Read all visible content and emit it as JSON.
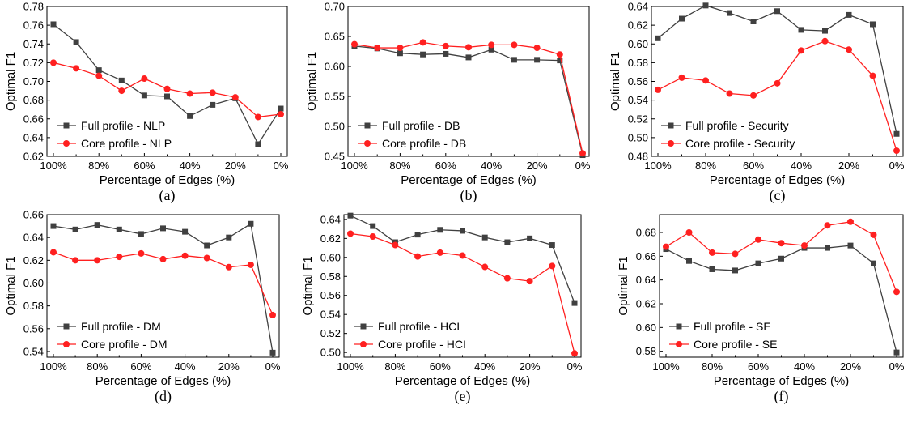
{
  "colors": {
    "full": "#404040",
    "core": "#ff2020",
    "axis": "#000000"
  },
  "chart_data": [
    {
      "type": "line",
      "caption": "(a)",
      "xlabel": "Percentage of Edges (%)",
      "ylabel": "Optimal F1",
      "categories": [
        "100%",
        "90%",
        "80%",
        "70%",
        "60%",
        "50%",
        "40%",
        "30%",
        "20%",
        "10%",
        "0%"
      ],
      "xtick_labels": [
        "100%",
        "80%",
        "60%",
        "40%",
        "20%",
        "0%"
      ],
      "ylim": [
        0.62,
        0.78
      ],
      "yticks": [
        "0.62",
        "0.64",
        "0.66",
        "0.68",
        "0.70",
        "0.72",
        "0.74",
        "0.76",
        "0.78"
      ],
      "legend_position": "bottom-left",
      "series": [
        {
          "name": "Full profile - NLP",
          "values": [
            0.761,
            0.742,
            0.712,
            0.701,
            0.685,
            0.684,
            0.663,
            0.675,
            0.682,
            0.633,
            0.671
          ]
        },
        {
          "name": "Core profile - NLP",
          "values": [
            0.72,
            0.714,
            0.706,
            0.69,
            0.703,
            0.692,
            0.687,
            0.688,
            0.683,
            0.662,
            0.665
          ]
        }
      ]
    },
    {
      "type": "line",
      "caption": "(b)",
      "xlabel": "Percentage of Edges (%)",
      "ylabel": "Optimal F1",
      "categories": [
        "100%",
        "90%",
        "80%",
        "70%",
        "60%",
        "50%",
        "40%",
        "30%",
        "20%",
        "10%",
        "0%"
      ],
      "xtick_labels": [
        "100%",
        "80%",
        "60%",
        "40%",
        "20%",
        "0%"
      ],
      "ylim": [
        0.45,
        0.7
      ],
      "yticks": [
        "0.45",
        "0.50",
        "0.55",
        "0.60",
        "0.65",
        "0.70"
      ],
      "legend_position": "bottom-left",
      "series": [
        {
          "name": "Full profile - DB",
          "values": [
            0.634,
            0.63,
            0.622,
            0.62,
            0.621,
            0.615,
            0.628,
            0.611,
            0.611,
            0.61,
            0.452
          ]
        },
        {
          "name": "Core profile - DB",
          "values": [
            0.637,
            0.631,
            0.631,
            0.64,
            0.634,
            0.632,
            0.636,
            0.636,
            0.631,
            0.62,
            0.455
          ]
        }
      ]
    },
    {
      "type": "line",
      "caption": "(c)",
      "xlabel": "Percentage of Edges (%)",
      "ylabel": "Optimal F1",
      "categories": [
        "100%",
        "90%",
        "80%",
        "70%",
        "60%",
        "50%",
        "40%",
        "30%",
        "20%",
        "10%",
        "0%"
      ],
      "xtick_labels": [
        "100%",
        "80%",
        "60%",
        "40%",
        "20%",
        "0%"
      ],
      "ylim": [
        0.48,
        0.64
      ],
      "yticks": [
        "0.48",
        "0.50",
        "0.52",
        "0.54",
        "0.56",
        "0.58",
        "0.60",
        "0.62",
        "0.64"
      ],
      "legend_position": "bottom-left",
      "series": [
        {
          "name": "Full profile - Security",
          "values": [
            0.606,
            0.627,
            0.641,
            0.633,
            0.624,
            0.635,
            0.615,
            0.614,
            0.631,
            0.621,
            0.504
          ]
        },
        {
          "name": "Core profile - Security",
          "values": [
            0.551,
            0.564,
            0.561,
            0.547,
            0.545,
            0.558,
            0.593,
            0.603,
            0.594,
            0.566,
            0.486
          ]
        }
      ]
    },
    {
      "type": "line",
      "caption": "(d)",
      "xlabel": "Percentage of Edges (%)",
      "ylabel": "Optimal F1",
      "categories": [
        "100%",
        "90%",
        "80%",
        "70%",
        "60%",
        "50%",
        "40%",
        "30%",
        "20%",
        "10%",
        "0%"
      ],
      "xtick_labels": [
        "100%",
        "80%",
        "60%",
        "40%",
        "20%",
        "0%"
      ],
      "ylim": [
        0.535,
        0.66
      ],
      "yticks": [
        "0.54",
        "0.56",
        "0.58",
        "0.60",
        "0.62",
        "0.64",
        "0.66"
      ],
      "legend_position": "bottom-left",
      "series": [
        {
          "name": "Full profile - DM",
          "values": [
            0.65,
            0.647,
            0.651,
            0.647,
            0.643,
            0.648,
            0.645,
            0.633,
            0.64,
            0.652,
            0.539
          ]
        },
        {
          "name": "Core profile - DM",
          "values": [
            0.627,
            0.62,
            0.62,
            0.623,
            0.626,
            0.621,
            0.624,
            0.622,
            0.614,
            0.616,
            0.572
          ]
        }
      ]
    },
    {
      "type": "line",
      "caption": "(e)",
      "xlabel": "Percentage of Edges (%)",
      "ylabel": "Optimal F1",
      "categories": [
        "100%",
        "90%",
        "80%",
        "70%",
        "60%",
        "50%",
        "40%",
        "30%",
        "20%",
        "10%",
        "0%"
      ],
      "xtick_labels": [
        "100%",
        "80%",
        "60%",
        "40%",
        "20%",
        "0%"
      ],
      "ylim": [
        0.495,
        0.645
      ],
      "yticks": [
        "0.50",
        "0.52",
        "0.54",
        "0.56",
        "0.58",
        "0.60",
        "0.62",
        "0.64"
      ],
      "legend_position": "bottom-left",
      "series": [
        {
          "name": "Full profile - HCI",
          "values": [
            0.644,
            0.633,
            0.616,
            0.624,
            0.629,
            0.628,
            0.621,
            0.616,
            0.62,
            0.613,
            0.552
          ]
        },
        {
          "name": "Core profile - HCI",
          "values": [
            0.625,
            0.622,
            0.613,
            0.601,
            0.605,
            0.602,
            0.59,
            0.578,
            0.575,
            0.591,
            0.499
          ]
        }
      ]
    },
    {
      "type": "line",
      "caption": "(f)",
      "xlabel": "Percentage of Edges (%)",
      "ylabel": "Optimal F1",
      "categories": [
        "100%",
        "90%",
        "80%",
        "70%",
        "60%",
        "50%",
        "40%",
        "30%",
        "20%",
        "10%",
        "0%"
      ],
      "xtick_labels": [
        "100%",
        "80%",
        "60%",
        "40%",
        "20%",
        "0%"
      ],
      "ylim": [
        0.575,
        0.695
      ],
      "yticks": [
        "0.58",
        "0.60",
        "0.62",
        "0.64",
        "0.66",
        "0.68"
      ],
      "legend_position": "bottom-left",
      "series": [
        {
          "name": "Full profile - SE",
          "values": [
            0.666,
            0.656,
            0.649,
            0.648,
            0.654,
            0.658,
            0.667,
            0.667,
            0.669,
            0.654,
            0.579
          ]
        },
        {
          "name": "Core profile - SE",
          "values": [
            0.668,
            0.68,
            0.663,
            0.662,
            0.674,
            0.671,
            0.669,
            0.686,
            0.689,
            0.678,
            0.63
          ]
        }
      ]
    }
  ]
}
